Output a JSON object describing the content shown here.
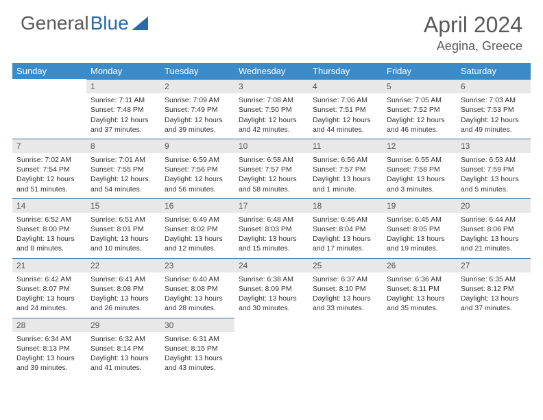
{
  "logo": {
    "word1": "General",
    "word2": "Blue",
    "word2_color": "#2a6aa8",
    "icon_color": "#2a6aa8"
  },
  "title": "April 2024",
  "location": "Aegina, Greece",
  "colors": {
    "header_bg": "#3b8bc9",
    "header_text": "#ffffff",
    "daybar_bg": "#e8e8e8",
    "daybar_border": "#3b6e9e",
    "text": "#333333",
    "title_text": "#5a5a5a"
  },
  "weekdays": [
    "Sunday",
    "Monday",
    "Tuesday",
    "Wednesday",
    "Thursday",
    "Friday",
    "Saturday"
  ],
  "weeks": [
    [
      null,
      {
        "n": "1",
        "sr": "7:11 AM",
        "ss": "7:48 PM",
        "dl": "Daylight: 12 hours and 37 minutes."
      },
      {
        "n": "2",
        "sr": "7:09 AM",
        "ss": "7:49 PM",
        "dl": "Daylight: 12 hours and 39 minutes."
      },
      {
        "n": "3",
        "sr": "7:08 AM",
        "ss": "7:50 PM",
        "dl": "Daylight: 12 hours and 42 minutes."
      },
      {
        "n": "4",
        "sr": "7:06 AM",
        "ss": "7:51 PM",
        "dl": "Daylight: 12 hours and 44 minutes."
      },
      {
        "n": "5",
        "sr": "7:05 AM",
        "ss": "7:52 PM",
        "dl": "Daylight: 12 hours and 46 minutes."
      },
      {
        "n": "6",
        "sr": "7:03 AM",
        "ss": "7:53 PM",
        "dl": "Daylight: 12 hours and 49 minutes."
      }
    ],
    [
      {
        "n": "7",
        "sr": "7:02 AM",
        "ss": "7:54 PM",
        "dl": "Daylight: 12 hours and 51 minutes."
      },
      {
        "n": "8",
        "sr": "7:01 AM",
        "ss": "7:55 PM",
        "dl": "Daylight: 12 hours and 54 minutes."
      },
      {
        "n": "9",
        "sr": "6:59 AM",
        "ss": "7:56 PM",
        "dl": "Daylight: 12 hours and 56 minutes."
      },
      {
        "n": "10",
        "sr": "6:58 AM",
        "ss": "7:57 PM",
        "dl": "Daylight: 12 hours and 58 minutes."
      },
      {
        "n": "11",
        "sr": "6:56 AM",
        "ss": "7:57 PM",
        "dl": "Daylight: 13 hours and 1 minute."
      },
      {
        "n": "12",
        "sr": "6:55 AM",
        "ss": "7:58 PM",
        "dl": "Daylight: 13 hours and 3 minutes."
      },
      {
        "n": "13",
        "sr": "6:53 AM",
        "ss": "7:59 PM",
        "dl": "Daylight: 13 hours and 5 minutes."
      }
    ],
    [
      {
        "n": "14",
        "sr": "6:52 AM",
        "ss": "8:00 PM",
        "dl": "Daylight: 13 hours and 8 minutes."
      },
      {
        "n": "15",
        "sr": "6:51 AM",
        "ss": "8:01 PM",
        "dl": "Daylight: 13 hours and 10 minutes."
      },
      {
        "n": "16",
        "sr": "6:49 AM",
        "ss": "8:02 PM",
        "dl": "Daylight: 13 hours and 12 minutes."
      },
      {
        "n": "17",
        "sr": "6:48 AM",
        "ss": "8:03 PM",
        "dl": "Daylight: 13 hours and 15 minutes."
      },
      {
        "n": "18",
        "sr": "6:46 AM",
        "ss": "8:04 PM",
        "dl": "Daylight: 13 hours and 17 minutes."
      },
      {
        "n": "19",
        "sr": "6:45 AM",
        "ss": "8:05 PM",
        "dl": "Daylight: 13 hours and 19 minutes."
      },
      {
        "n": "20",
        "sr": "6:44 AM",
        "ss": "8:06 PM",
        "dl": "Daylight: 13 hours and 21 minutes."
      }
    ],
    [
      {
        "n": "21",
        "sr": "6:42 AM",
        "ss": "8:07 PM",
        "dl": "Daylight: 13 hours and 24 minutes."
      },
      {
        "n": "22",
        "sr": "6:41 AM",
        "ss": "8:08 PM",
        "dl": "Daylight: 13 hours and 26 minutes."
      },
      {
        "n": "23",
        "sr": "6:40 AM",
        "ss": "8:08 PM",
        "dl": "Daylight: 13 hours and 28 minutes."
      },
      {
        "n": "24",
        "sr": "6:38 AM",
        "ss": "8:09 PM",
        "dl": "Daylight: 13 hours and 30 minutes."
      },
      {
        "n": "25",
        "sr": "6:37 AM",
        "ss": "8:10 PM",
        "dl": "Daylight: 13 hours and 33 minutes."
      },
      {
        "n": "26",
        "sr": "6:36 AM",
        "ss": "8:11 PM",
        "dl": "Daylight: 13 hours and 35 minutes."
      },
      {
        "n": "27",
        "sr": "6:35 AM",
        "ss": "8:12 PM",
        "dl": "Daylight: 13 hours and 37 minutes."
      }
    ],
    [
      {
        "n": "28",
        "sr": "6:34 AM",
        "ss": "8:13 PM",
        "dl": "Daylight: 13 hours and 39 minutes."
      },
      {
        "n": "29",
        "sr": "6:32 AM",
        "ss": "8:14 PM",
        "dl": "Daylight: 13 hours and 41 minutes."
      },
      {
        "n": "30",
        "sr": "6:31 AM",
        "ss": "8:15 PM",
        "dl": "Daylight: 13 hours and 43 minutes."
      },
      null,
      null,
      null,
      null
    ]
  ],
  "labels": {
    "sunrise_prefix": "Sunrise: ",
    "sunset_prefix": "Sunset: "
  }
}
